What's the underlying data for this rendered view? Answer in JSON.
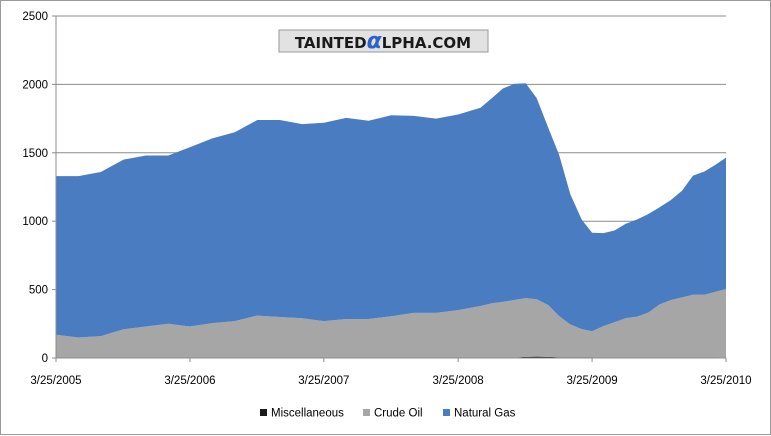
{
  "watermark": {
    "text_before": "TAINTED",
    "glyph": "α",
    "text_after": "LPHA.COM",
    "glyph_color": "#2a63c9"
  },
  "chart_data": {
    "type": "area",
    "stacked": true,
    "title": "",
    "xlabel": "",
    "ylabel": "",
    "ylim": [
      0,
      2500
    ],
    "yticks": [
      0,
      500,
      1000,
      1500,
      2000,
      2500
    ],
    "grid": {
      "horizontal": true,
      "vertical": false
    },
    "legend_position": "bottom",
    "x_start": "3/25/2005",
    "x_end": "3/25/2010",
    "x_tick_labels": [
      "3/25/2005",
      "3/25/2006",
      "3/25/2007",
      "3/25/2008",
      "3/25/2009",
      "3/25/2010"
    ],
    "x": [
      "3/25/2005",
      "5/25/2005",
      "7/25/2005",
      "9/25/2005",
      "11/25/2005",
      "1/25/2006",
      "3/25/2006",
      "5/25/2006",
      "7/25/2006",
      "9/25/2006",
      "11/25/2006",
      "1/25/2007",
      "3/25/2007",
      "5/25/2007",
      "7/25/2007",
      "9/25/2007",
      "11/25/2007",
      "1/25/2008",
      "3/25/2008",
      "5/25/2008",
      "6/25/2008",
      "7/25/2008",
      "8/25/2008",
      "9/25/2008",
      "10/25/2008",
      "11/25/2008",
      "12/25/2008",
      "1/25/2009",
      "2/25/2009",
      "3/25/2009",
      "4/25/2009",
      "5/25/2009",
      "6/25/2009",
      "7/25/2009",
      "8/25/2009",
      "9/25/2009",
      "10/25/2009",
      "11/25/2009",
      "12/25/2009",
      "1/25/2010",
      "2/25/2010",
      "3/25/2010"
    ],
    "series": [
      {
        "name": "Miscellaneous",
        "color": "#1a1a1a",
        "values": [
          0,
          0,
          0,
          0,
          0,
          0,
          0,
          0,
          0,
          0,
          0,
          0,
          0,
          0,
          0,
          0,
          0,
          0,
          0,
          0,
          0,
          0,
          4,
          8,
          10,
          8,
          6,
          5,
          6,
          5,
          3,
          2,
          2,
          2,
          2,
          2,
          3,
          3,
          3,
          3,
          4,
          5
        ]
      },
      {
        "name": "Crude Oil",
        "color": "#a6a6a6",
        "values": [
          170,
          150,
          160,
          210,
          230,
          250,
          230,
          255,
          270,
          310,
          300,
          290,
          270,
          285,
          285,
          305,
          330,
          330,
          350,
          380,
          400,
          410,
          420,
          430,
          420,
          380,
          300,
          240,
          205,
          190,
          230,
          260,
          290,
          300,
          330,
          390,
          420,
          440,
          460,
          460,
          480,
          500
        ]
      },
      {
        "name": "Natural Gas",
        "color": "#4a7cc2",
        "values": [
          1160,
          1180,
          1200,
          1240,
          1250,
          1230,
          1310,
          1350,
          1380,
          1430,
          1440,
          1420,
          1450,
          1470,
          1450,
          1470,
          1440,
          1420,
          1430,
          1450,
          1500,
          1560,
          1580,
          1570,
          1470,
          1300,
          1180,
          950,
          800,
          720,
          680,
          670,
          690,
          710,
          720,
          710,
          730,
          780,
          870,
          900,
          930,
          960
        ]
      }
    ]
  }
}
